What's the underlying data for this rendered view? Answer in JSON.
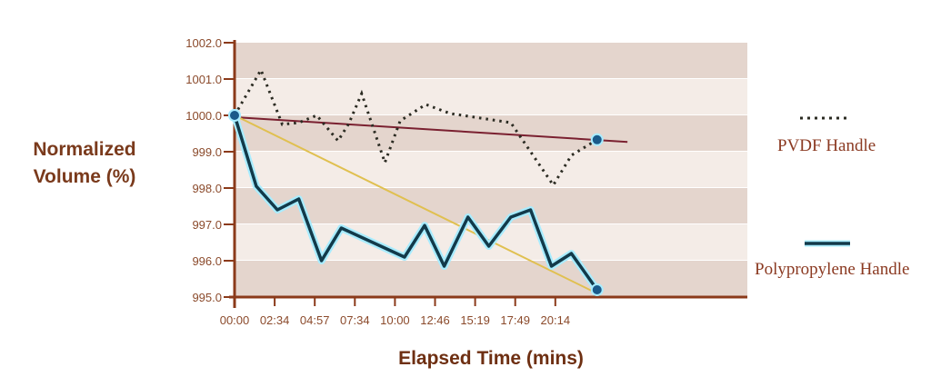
{
  "chart_data": {
    "type": "line",
    "title": "",
    "xlabel": "Elapsed Time (mins)",
    "ylabel": "Normalized Volume (%)",
    "x_tick_labels": [
      "00:00",
      "02:34",
      "04:57",
      "07:34",
      "10:00",
      "12:46",
      "15:19",
      "17:49",
      "20:14"
    ],
    "x_tick_minutes": [
      0,
      2.567,
      4.95,
      7.567,
      10,
      12.767,
      15.317,
      17.817,
      20.233
    ],
    "y_tick_labels": [
      "1002.0",
      "1001.0",
      "1000.0",
      "999.0",
      "998.0",
      "997.0",
      "996.0",
      "995.0"
    ],
    "ylim": [
      995,
      1002
    ],
    "xlim_minutes": [
      0,
      24.9
    ],
    "grid": "alternating horizontal bands",
    "legend_placement": "right",
    "series": [
      {
        "name": "PVDF Handle",
        "style": "dotted",
        "color": "#2b2b22",
        "x": [
          0,
          1.69,
          3.02,
          4.0,
          5.08,
          6.47,
          7.17,
          7.98,
          9.39,
          10.36,
          12.13,
          13.74,
          17.54,
          20.11,
          21.2,
          22.75
        ],
        "y": [
          1000.0,
          1001.25,
          999.75,
          999.8,
          1000.0,
          999.3,
          999.77,
          1000.6,
          998.7,
          999.85,
          1000.3,
          1000.05,
          999.8,
          998.08,
          998.9,
          999.33
        ]
      },
      {
        "name": "Polypropylene Handle",
        "style": "solid",
        "color": "#123a4a",
        "x": [
          0,
          1.39,
          2.73,
          4.0,
          5.39,
          6.68,
          10.66,
          12.05,
          13.35,
          14.86,
          16.17,
          17.54,
          18.74,
          20.0,
          21.2,
          22.75
        ],
        "y": [
          1000.0,
          998.05,
          997.4,
          997.7,
          996.0,
          996.9,
          996.1,
          996.97,
          995.85,
          997.2,
          996.4,
          997.2,
          997.4,
          995.85,
          996.2,
          995.2
        ]
      }
    ],
    "trend_lines": [
      {
        "color": "#7a2030",
        "x": [
          0,
          24.58
        ],
        "y": [
          999.95,
          999.27
        ]
      },
      {
        "color": "#e0c050",
        "x": [
          0,
          22.75
        ],
        "y": [
          1000.0,
          995.1
        ]
      }
    ],
    "colors": {
      "axis": "#8b3a1a",
      "tick_label": "#8b4a2b",
      "band_dark": "#e4d5cd",
      "band_light": "#f4ece7",
      "marker": "#1a5a8a",
      "glow": "#a8ecff"
    }
  }
}
